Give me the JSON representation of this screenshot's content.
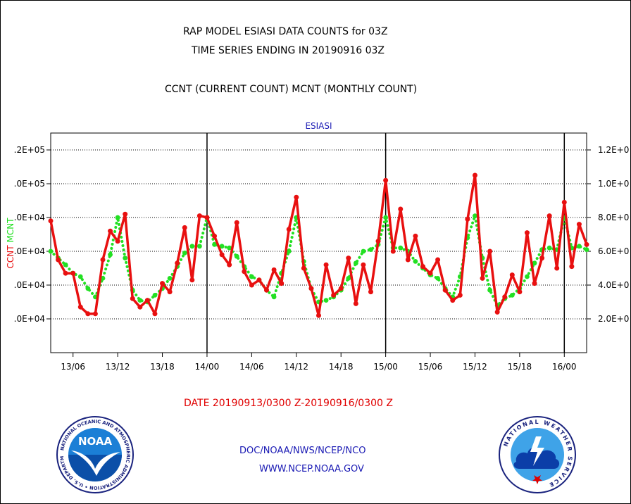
{
  "header": {
    "title_line1": "RAP MODEL ESIASI DATA COUNTS for 03Z",
    "title_line2": "TIME SERIES ENDING IN 20190916 03Z",
    "subtitle": "CCNT (CURRENT COUNT) MCNT (MONTHLY COUNT)"
  },
  "footer": {
    "date_range": "DATE 20190913/0300 Z-20190916/0300 Z",
    "org": "DOC/NOAA/NWS/NCEP/NCO",
    "url": "WWW.NCEP.NOAA.GOV"
  },
  "logos": {
    "noaa_text": "NOAA",
    "noaa_ring": "NATIONAL OCEANIC AND ATMOSPHERIC ADMINISTRATION • U.S. DEPARTMENT OF COMMERCE •",
    "nws_ring": "NATIONAL WEATHER SERVICE"
  },
  "colors": {
    "ccnt": "#e81010",
    "mcnt": "#22e022",
    "axis_title": "#1a1ab4",
    "grid": "#000000"
  },
  "chart_data": {
    "type": "line",
    "title": "ESIASI",
    "ylabel_left": [
      "CCNT",
      "MCNT"
    ],
    "ylim": [
      0,
      130000
    ],
    "ytick_values": [
      20000,
      40000,
      60000,
      80000,
      100000,
      120000
    ],
    "yticks_left": [
      ".0E+04",
      ".0E+04",
      ".0E+04",
      ".0E+04",
      ".0E+05",
      ".2E+05"
    ],
    "yticks_right": [
      "2.0E+0",
      "4.0E+0",
      "6.0E+0",
      "8.0E+0",
      "1.0E+0",
      "1.2E+0"
    ],
    "x_range": [
      0,
      72
    ],
    "xtick_positions": [
      3,
      9,
      15,
      21,
      27,
      33,
      39,
      45,
      51,
      57,
      63,
      69
    ],
    "xtick_labels": [
      "13/06",
      "13/12",
      "13/18",
      "14/00",
      "14/06",
      "14/12",
      "14/18",
      "15/00",
      "15/06",
      "15/12",
      "15/18",
      "16/00"
    ],
    "day_boundaries": [
      21,
      45,
      69
    ],
    "grid": "horizontal",
    "x": [
      0,
      1,
      2,
      3,
      4,
      5,
      6,
      7,
      8,
      9,
      10,
      11,
      12,
      13,
      14,
      15,
      16,
      17,
      18,
      19,
      20,
      21,
      22,
      23,
      24,
      25,
      26,
      27,
      28,
      29,
      30,
      31,
      32,
      33,
      34,
      35,
      36,
      37,
      38,
      39,
      40,
      41,
      42,
      43,
      44,
      45,
      46,
      47,
      48,
      49,
      50,
      51,
      52,
      53,
      54,
      55,
      56,
      57,
      58,
      59,
      60,
      61,
      62,
      63,
      64,
      65,
      66,
      67,
      68,
      69,
      70,
      71,
      72
    ],
    "series": [
      {
        "name": "CCNT",
        "values": [
          78000,
          55000,
          47000,
          47000,
          27000,
          23000,
          23000,
          55000,
          72000,
          66000,
          82000,
          32000,
          27000,
          31000,
          23000,
          41000,
          36000,
          53000,
          74000,
          43000,
          81000,
          80000,
          69000,
          58000,
          52000,
          77000,
          48000,
          40000,
          43000,
          37000,
          49000,
          41000,
          73000,
          92000,
          50000,
          38000,
          22000,
          52000,
          34000,
          38000,
          56000,
          29000,
          52000,
          36000,
          66000,
          102000,
          60000,
          85000,
          55000,
          69000,
          51000,
          47000,
          55000,
          37000,
          31000,
          34000,
          79000,
          105000,
          44000,
          60000,
          24000,
          33000,
          46000,
          36000,
          71000,
          41000,
          56000,
          81000,
          50000,
          89000,
          51000,
          76000,
          64000
        ]
      },
      {
        "name": "MCNT",
        "values": [
          60000,
          56000,
          52000,
          47000,
          45000,
          38000,
          33000,
          44000,
          58000,
          80000,
          56000,
          37000,
          31000,
          30000,
          34000,
          38000,
          44000,
          51000,
          59000,
          63000,
          63000,
          80000,
          64000,
          63000,
          62000,
          57000,
          51000,
          45000,
          43000,
          37000,
          33000,
          47000,
          60000,
          80000,
          54000,
          38000,
          30000,
          31000,
          33000,
          37000,
          44000,
          53000,
          60000,
          61000,
          64000,
          80000,
          62000,
          62000,
          60000,
          54000,
          50000,
          46000,
          44000,
          38000,
          33000,
          45000,
          68000,
          81000,
          56000,
          37000,
          28000,
          32000,
          34000,
          38000,
          45000,
          53000,
          61000,
          62000,
          61000,
          80000,
          62000,
          63000,
          61000
        ]
      }
    ]
  }
}
